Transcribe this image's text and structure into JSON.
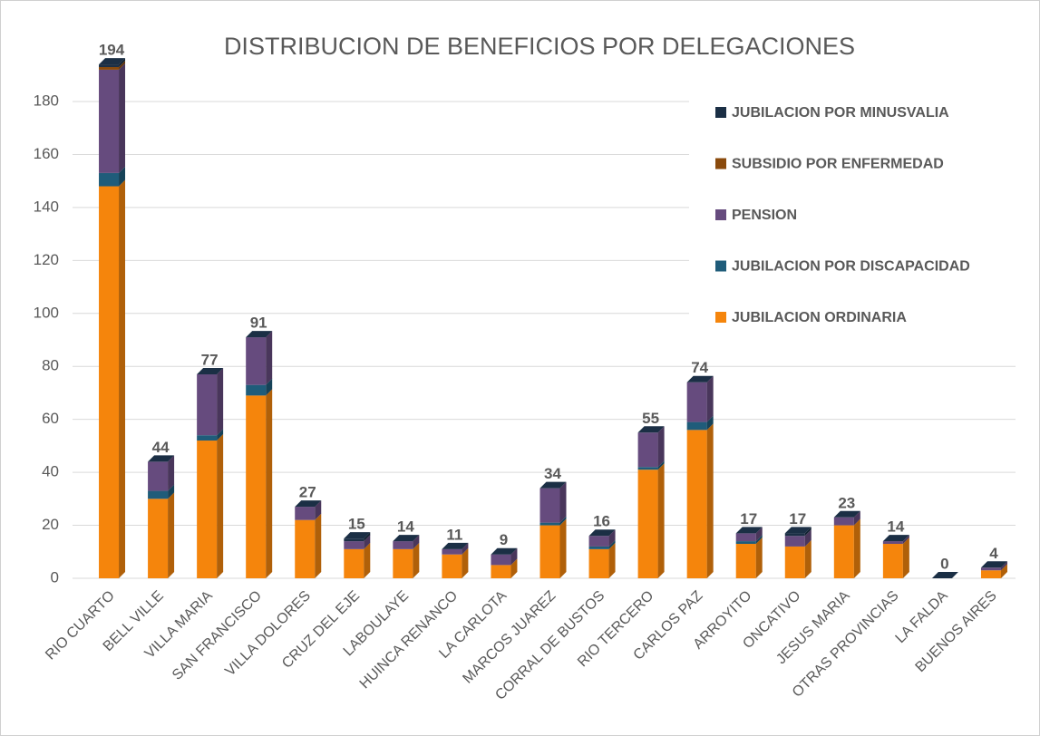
{
  "chart_data": {
    "type": "bar3d_stacked",
    "title": "DISTRIBUCION DE BENEFICIOS POR DELEGACIONES",
    "categories": [
      "RIO CUARTO",
      "BELL VILLE",
      "VILLA MARIA",
      "SAN FRANCISCO",
      "VILLA DOLORES",
      "CRUZ DEL EJE",
      "LABOULAYE",
      "HUINCA RENANCO",
      "LA CARLOTA",
      "MARCOS JUAREZ",
      "CORRAL DE BUSTOS",
      "RIO TERCERO",
      "CARLOS PAZ",
      "ARROYITO",
      "ONCATIVO",
      "JESUS MARIA",
      "OTRAS PROVINCIAS",
      "LA FALDA",
      "BUENOS AIRES"
    ],
    "series": [
      {
        "name": "JUBILACION ORDINARIA",
        "color": "#f5850c",
        "values": [
          148,
          30,
          52,
          69,
          22,
          11,
          11,
          9,
          5,
          20,
          11,
          41,
          56,
          13,
          12,
          20,
          13,
          0,
          3
        ]
      },
      {
        "name": "JUBILACION POR DISCAPACIDAD",
        "color": "#1f5c7a",
        "values": [
          5,
          3,
          2,
          4,
          0,
          0,
          0,
          0,
          0,
          1,
          1,
          1,
          3,
          1,
          0,
          0,
          0,
          0,
          0
        ]
      },
      {
        "name": "PENSION",
        "color": "#664b7e",
        "values": [
          39,
          11,
          23,
          18,
          5,
          3,
          3,
          2,
          4,
          13,
          4,
          13,
          15,
          3,
          4,
          3,
          1,
          0,
          1
        ]
      },
      {
        "name": "SUBSIDIO POR ENFERMEDAD",
        "color": "#8a4a0c",
        "values": [
          1,
          0,
          0,
          0,
          0,
          0,
          0,
          0,
          0,
          0,
          0,
          0,
          0,
          0,
          0,
          0,
          0,
          0,
          0
        ]
      },
      {
        "name": "JUBILACION POR MINUSVALIA",
        "color": "#1b2f45",
        "values": [
          1,
          0,
          0,
          0,
          0,
          1,
          0,
          0,
          0,
          0,
          0,
          0,
          0,
          0,
          1,
          0,
          0,
          0,
          0
        ]
      }
    ],
    "totals": [
      194,
      44,
      77,
      91,
      27,
      15,
      14,
      11,
      9,
      34,
      16,
      55,
      74,
      17,
      17,
      23,
      14,
      0,
      4
    ],
    "ylim": [
      0,
      180
    ],
    "yticks": [
      0,
      20,
      40,
      60,
      80,
      100,
      120,
      140,
      160,
      180
    ],
    "grid": true,
    "legend": "right"
  }
}
